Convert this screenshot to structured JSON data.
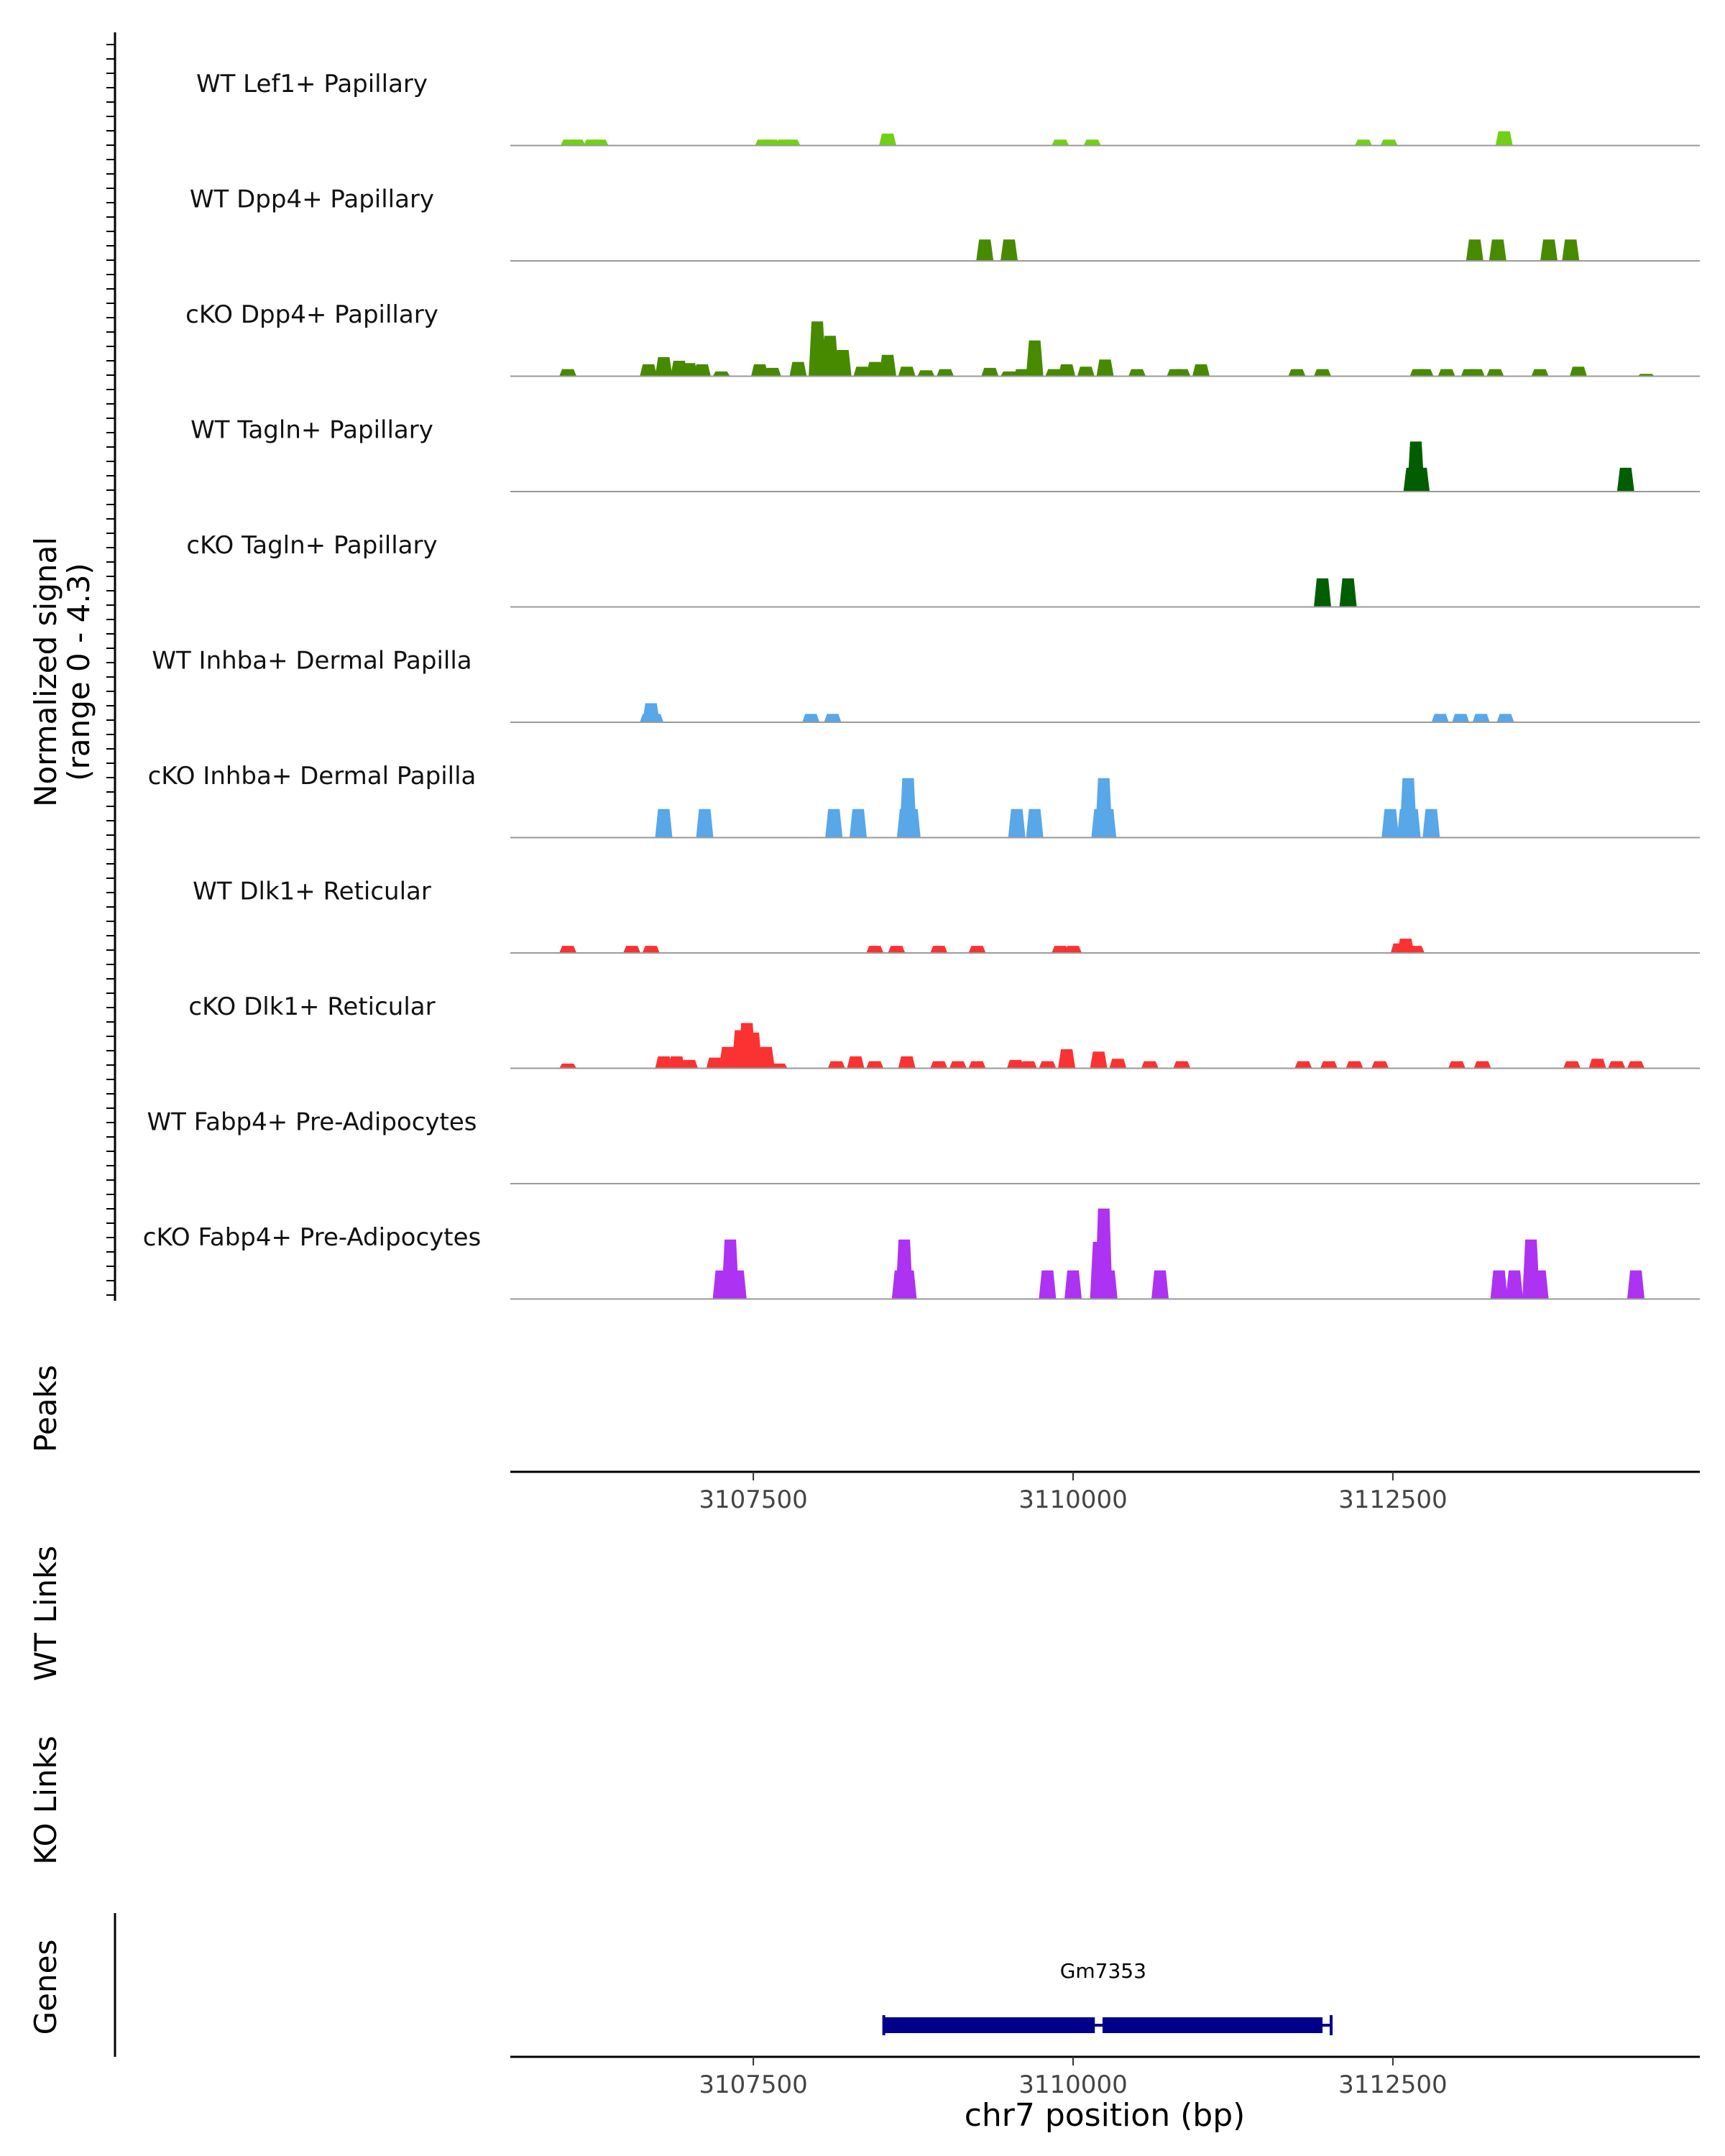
{
  "chart_data": {
    "type": "area",
    "title": "",
    "y_axis_title": "Normalized signal",
    "y_axis_subtitle": "(range 0 - 4.3)",
    "xlabel": "chr7 position (bp)",
    "chromosome": "chr7",
    "xlim": [
      3105600,
      3114900
    ],
    "ylim": [
      0,
      4.3
    ],
    "x_ticks": [
      3107500,
      3110000,
      3112500
    ],
    "x_tick_labels": [
      "3107500",
      "3110000",
      "3112500"
    ],
    "tracks": [
      {
        "name": "WT Lef1+ Papillary",
        "color": "#6fd113",
        "peaks": [
          [
            3106060,
            0.25
          ],
          [
            3106120,
            0.25
          ],
          [
            3106240,
            0.25
          ],
          [
            3106300,
            0.25
          ],
          [
            3107580,
            0.25
          ],
          [
            3107640,
            0.25
          ],
          [
            3107740,
            0.25
          ],
          [
            3107800,
            0.25
          ],
          [
            3108550,
            0.5
          ],
          [
            3109900,
            0.25
          ],
          [
            3110150,
            0.25
          ],
          [
            3112270,
            0.25
          ],
          [
            3112470,
            0.25
          ],
          [
            3113370,
            0.6
          ]
        ]
      },
      {
        "name": "WT Dpp4+ Papillary",
        "color": "#478a00",
        "peaks": [
          [
            3109310,
            0.9
          ],
          [
            3109500,
            0.9
          ],
          [
            3113140,
            0.9
          ],
          [
            3113320,
            0.9
          ],
          [
            3113720,
            0.9
          ],
          [
            3113890,
            0.9
          ]
        ]
      },
      {
        "name": "cKO Dpp4+ Papillary",
        "color": "#478a00",
        "peaks": [
          [
            3106050,
            0.3
          ],
          [
            3106680,
            0.5
          ],
          [
            3106800,
            0.8
          ],
          [
            3106920,
            0.65
          ],
          [
            3107000,
            0.55
          ],
          [
            3107100,
            0.5
          ],
          [
            3107250,
            0.2
          ],
          [
            3107550,
            0.5
          ],
          [
            3107650,
            0.35
          ],
          [
            3107850,
            0.6
          ],
          [
            3108000,
            2.3
          ],
          [
            3108100,
            1.7
          ],
          [
            3108200,
            1.1
          ],
          [
            3108350,
            0.4
          ],
          [
            3108450,
            0.6
          ],
          [
            3108550,
            0.9
          ],
          [
            3108700,
            0.4
          ],
          [
            3108850,
            0.25
          ],
          [
            3109000,
            0.3
          ],
          [
            3109350,
            0.35
          ],
          [
            3109500,
            0.2
          ],
          [
            3109600,
            0.3
          ],
          [
            3109700,
            1.5
          ],
          [
            3109850,
            0.3
          ],
          [
            3109950,
            0.5
          ],
          [
            3110100,
            0.4
          ],
          [
            3110250,
            0.7
          ],
          [
            3110500,
            0.3
          ],
          [
            3110800,
            0.3
          ],
          [
            3110850,
            0.3
          ],
          [
            3111000,
            0.5
          ],
          [
            3111750,
            0.3
          ],
          [
            3111950,
            0.3
          ],
          [
            3112700,
            0.3
          ],
          [
            3112750,
            0.3
          ],
          [
            3112920,
            0.3
          ],
          [
            3113100,
            0.3
          ],
          [
            3113150,
            0.3
          ],
          [
            3113300,
            0.3
          ],
          [
            3113650,
            0.3
          ],
          [
            3113950,
            0.4
          ],
          [
            3114480,
            0.1
          ]
        ]
      },
      {
        "name": "WT Tagln+ Papillary",
        "color": "#005e00",
        "peaks": [
          [
            3112650,
            1.0
          ],
          [
            3112680,
            2.1
          ],
          [
            3112720,
            1.0
          ],
          [
            3114320,
            1.0
          ]
        ]
      },
      {
        "name": "cKO Tagln+ Papillary",
        "color": "#005e00",
        "peaks": [
          [
            3111950,
            1.2
          ],
          [
            3112150,
            1.2
          ]
        ]
      },
      {
        "name": "WT Inhba+ Dermal Papilla",
        "color": "#57a7e9",
        "peaks": [
          [
            3106680,
            0.35
          ],
          [
            3106700,
            0.8
          ],
          [
            3106730,
            0.35
          ],
          [
            3107950,
            0.35
          ],
          [
            3108120,
            0.35
          ],
          [
            3112870,
            0.35
          ],
          [
            3113030,
            0.35
          ],
          [
            3113190,
            0.35
          ],
          [
            3113380,
            0.35
          ]
        ]
      },
      {
        "name": "cKO Inhba+ Dermal Papilla",
        "color": "#57a7e9",
        "peaks": [
          [
            3106800,
            1.2
          ],
          [
            3107120,
            1.2
          ],
          [
            3108130,
            1.2
          ],
          [
            3108320,
            1.2
          ],
          [
            3108690,
            1.2
          ],
          [
            3108710,
            2.5
          ],
          [
            3108740,
            1.2
          ],
          [
            3109560,
            1.2
          ],
          [
            3109700,
            1.2
          ],
          [
            3110210,
            1.2
          ],
          [
            3110240,
            2.5
          ],
          [
            3110270,
            1.2
          ],
          [
            3112480,
            1.2
          ],
          [
            3112600,
            1.2
          ],
          [
            3112620,
            2.5
          ],
          [
            3112650,
            1.2
          ],
          [
            3112800,
            1.2
          ]
        ]
      },
      {
        "name": "WT Dlk1+ Reticular",
        "color": "#fa3232",
        "peaks": [
          [
            3106050,
            0.3
          ],
          [
            3106550,
            0.3
          ],
          [
            3106700,
            0.3
          ],
          [
            3108450,
            0.3
          ],
          [
            3108620,
            0.3
          ],
          [
            3108950,
            0.3
          ],
          [
            3109250,
            0.3
          ],
          [
            3109900,
            0.3
          ],
          [
            3110000,
            0.3
          ],
          [
            3112550,
            0.4
          ],
          [
            3112600,
            0.6
          ],
          [
            3112680,
            0.3
          ]
        ]
      },
      {
        "name": "cKO Dlk1+ Reticular",
        "color": "#fa3232",
        "peaks": [
          [
            3106050,
            0.2
          ],
          [
            3106800,
            0.5
          ],
          [
            3106900,
            0.5
          ],
          [
            3107000,
            0.35
          ],
          [
            3107200,
            0.45
          ],
          [
            3107300,
            0.9
          ],
          [
            3107400,
            1.6
          ],
          [
            3107450,
            1.9
          ],
          [
            3107500,
            1.5
          ],
          [
            3107600,
            0.9
          ],
          [
            3107700,
            0.2
          ],
          [
            3108150,
            0.3
          ],
          [
            3108300,
            0.5
          ],
          [
            3108450,
            0.3
          ],
          [
            3108700,
            0.5
          ],
          [
            3108950,
            0.3
          ],
          [
            3109100,
            0.3
          ],
          [
            3109250,
            0.3
          ],
          [
            3109550,
            0.35
          ],
          [
            3109650,
            0.3
          ],
          [
            3109800,
            0.3
          ],
          [
            3109950,
            0.8
          ],
          [
            3110200,
            0.7
          ],
          [
            3110350,
            0.4
          ],
          [
            3110600,
            0.3
          ],
          [
            3110850,
            0.3
          ],
          [
            3111800,
            0.3
          ],
          [
            3112000,
            0.3
          ],
          [
            3112200,
            0.3
          ],
          [
            3112400,
            0.3
          ],
          [
            3113000,
            0.3
          ],
          [
            3113200,
            0.3
          ],
          [
            3113900,
            0.3
          ],
          [
            3114100,
            0.4
          ],
          [
            3114250,
            0.3
          ],
          [
            3114400,
            0.3
          ]
        ]
      },
      {
        "name": "WT Fabp4+ Pre-Adipocytes",
        "color": "#ad32f2",
        "peaks": []
      },
      {
        "name": "cKO Fabp4+ Pre-Adipocytes",
        "color": "#ad32f2",
        "peaks": [
          [
            3107250,
            1.2
          ],
          [
            3107320,
            2.5
          ],
          [
            3107380,
            1.2
          ],
          [
            3108650,
            1.2
          ],
          [
            3108680,
            2.5
          ],
          [
            3108710,
            1.2
          ],
          [
            3109800,
            1.2
          ],
          [
            3110000,
            1.2
          ],
          [
            3110200,
            2.4
          ],
          [
            3110240,
            3.8
          ],
          [
            3110280,
            1.2
          ],
          [
            3110680,
            1.2
          ],
          [
            3113330,
            1.2
          ],
          [
            3113450,
            1.2
          ],
          [
            3113580,
            2.5
          ],
          [
            3113650,
            1.2
          ],
          [
            3114400,
            1.2
          ]
        ]
      }
    ],
    "annotation_tracks": [
      "Peaks",
      "WT Links",
      "KO Links",
      "Genes"
    ],
    "genes": [
      {
        "name": "Gm7353",
        "start": 3108520,
        "end": 3111950,
        "intron_start": 3110170,
        "intron_end": 3110230
      }
    ]
  }
}
